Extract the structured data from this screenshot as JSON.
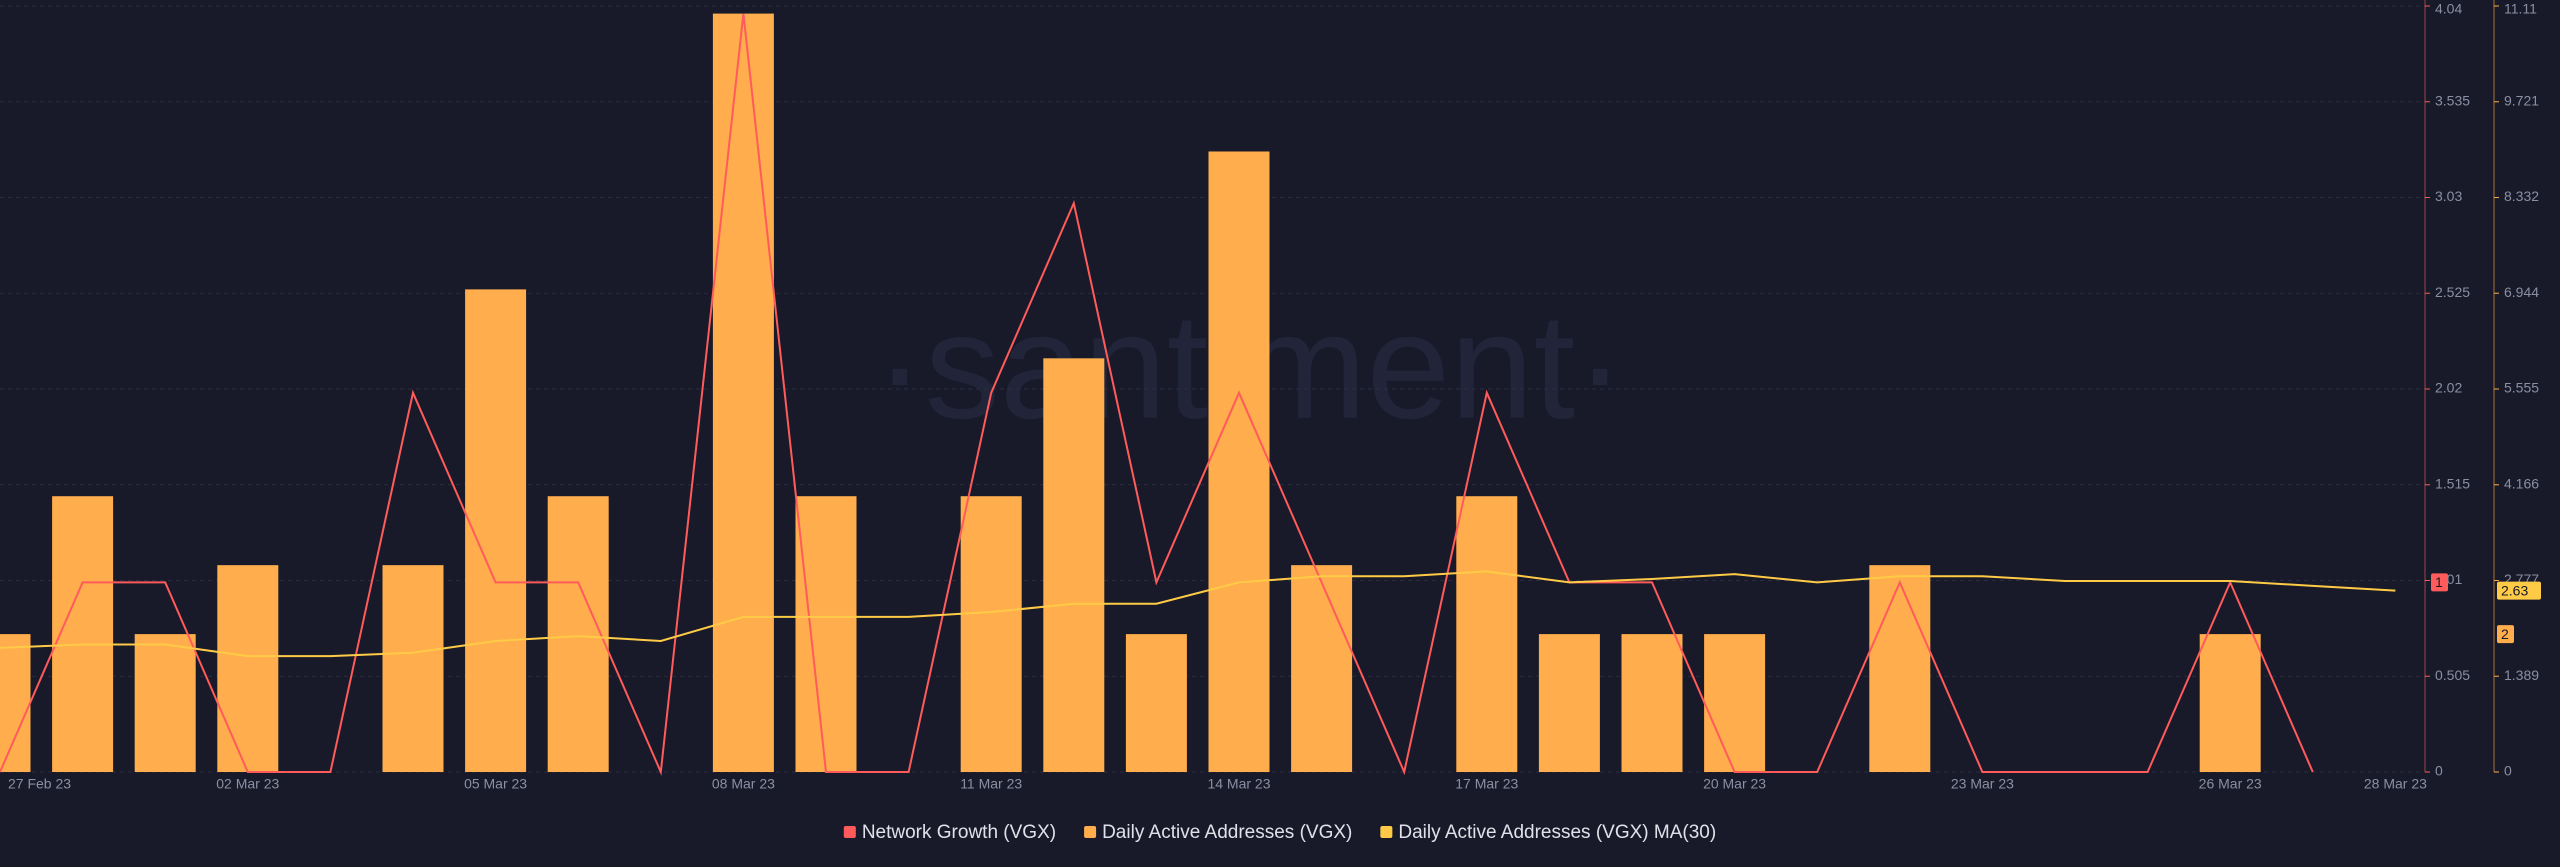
{
  "chart_data": {
    "type": "bar",
    "watermark": "·santiment·",
    "categories": [
      "27 Feb 23",
      null,
      null,
      "02 Mar 23",
      null,
      null,
      "05 Mar 23",
      null,
      null,
      "08 Mar 23",
      null,
      null,
      "11 Mar 23",
      null,
      null,
      "14 Mar 23",
      null,
      null,
      "17 Mar 23",
      null,
      null,
      "20 Mar 23",
      null,
      null,
      "23 Mar 23",
      null,
      null,
      "26 Mar 23",
      null,
      "28 Mar 23"
    ],
    "series": [
      {
        "name": "Network Growth (VGX)",
        "type": "line",
        "axis": "y",
        "color": "#ff5b5b",
        "values": [
          0,
          1,
          1,
          0,
          0,
          2,
          1,
          1,
          0,
          4,
          0,
          0,
          2,
          3,
          1,
          2,
          1,
          0,
          2,
          1,
          1,
          0,
          0,
          1,
          0,
          0,
          0,
          1,
          0,
          null
        ]
      },
      {
        "name": "Daily Active Addresses (VGX)",
        "type": "bar",
        "axis": "y2",
        "color": "#ffad4d",
        "values": [
          2,
          4,
          2,
          3,
          0,
          3,
          7,
          4,
          0,
          11,
          4,
          0,
          4,
          6,
          2,
          9,
          3,
          0,
          4,
          2,
          2,
          2,
          0,
          3,
          0,
          0,
          0,
          2,
          0,
          0
        ]
      },
      {
        "name": "Daily Active Addresses (VGX) MA(30)",
        "type": "line",
        "axis": "y2",
        "color": "#ffcb47",
        "values": [
          1.8,
          1.85,
          1.85,
          1.68,
          1.68,
          1.73,
          1.9,
          1.97,
          1.9,
          2.25,
          2.25,
          2.25,
          2.32,
          2.44,
          2.44,
          2.75,
          2.84,
          2.84,
          2.91,
          2.75,
          2.8,
          2.87,
          2.75,
          2.84,
          2.84,
          2.77,
          2.77,
          2.77,
          2.7,
          2.63
        ]
      }
    ],
    "ylim": [
      0,
      4.04
    ],
    "yticks": [
      0,
      0.505,
      1.01,
      1.515,
      2.02,
      2.525,
      3.03,
      3.535,
      4.04
    ],
    "y2lim": [
      0,
      11.11
    ],
    "y2ticks": [
      0,
      1.389,
      2.777,
      4.166,
      5.555,
      6.944,
      8.332,
      9.721,
      11.11
    ],
    "grid": true,
    "axis_markers": [
      {
        "axis": "y",
        "value": 1,
        "color": "#ff5b5b"
      },
      {
        "axis": "y2",
        "value": 2.63,
        "color": "#ffcb47"
      },
      {
        "axis": "y2",
        "value": 2,
        "color": "#ffad4d"
      }
    ]
  }
}
